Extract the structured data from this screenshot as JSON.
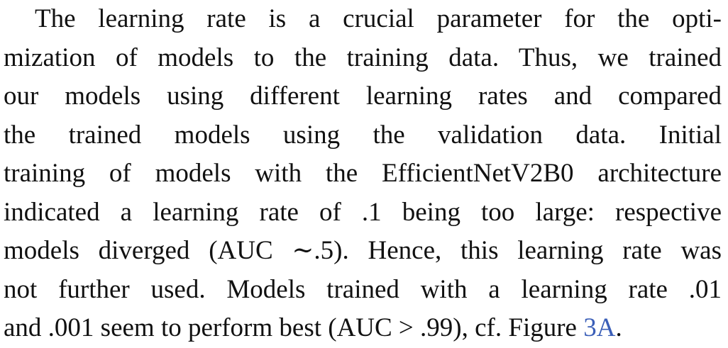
{
  "paragraph": {
    "lines": [
      "The learning rate is a crucial parameter for the opti-",
      "mization of models to the training data. Thus, we trained",
      "our models using different learning rates and compared",
      "the trained models using the validation data. Initial",
      "training of models with the EfficientNetV2B0 architecture",
      "indicated a learning rate of .1 being too large: respective",
      "models diverged (AUC ∼.5). Hence, this learning rate was",
      "not further used. Models trained with a learning rate .01"
    ],
    "last_line": {
      "text": "and .001 seem to perform best (AUC > .99), cf. Figure ",
      "link": "3A",
      "end": "."
    }
  }
}
